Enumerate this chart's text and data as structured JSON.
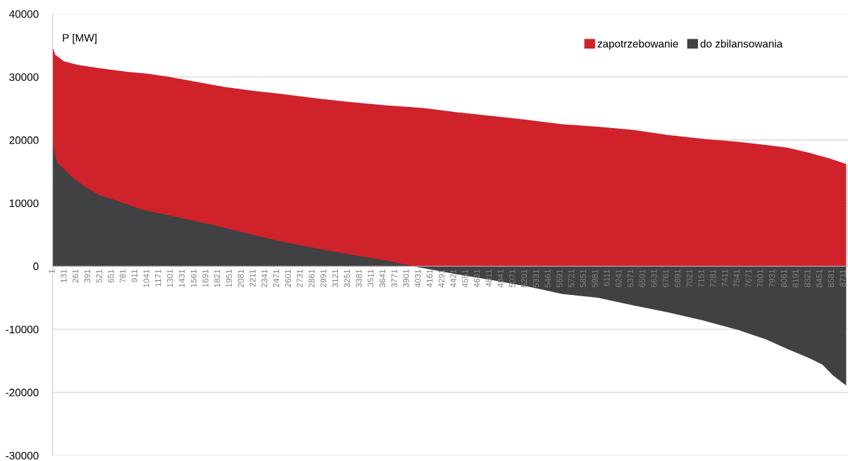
{
  "chart_data": {
    "type": "area",
    "ylabel": "P [MW]",
    "xlim": [
      1,
      8760
    ],
    "ylim": [
      -30000,
      40000
    ],
    "yticks": [
      -30000,
      -20000,
      -10000,
      0,
      10000,
      20000,
      30000,
      40000
    ],
    "xticks": [
      1,
      131,
      261,
      391,
      521,
      651,
      781,
      911,
      1041,
      1171,
      1301,
      1431,
      1561,
      1691,
      1821,
      1951,
      2081,
      2211,
      2341,
      2471,
      2601,
      2731,
      2861,
      2991,
      3121,
      3251,
      3381,
      3511,
      3641,
      3771,
      3901,
      4031,
      4161,
      4291,
      4421,
      4551,
      4681,
      4811,
      4941,
      5071,
      5201,
      5331,
      5461,
      5591,
      5721,
      5851,
      5981,
      6111,
      6241,
      6371,
      6501,
      6631,
      6761,
      6891,
      7021,
      7151,
      7281,
      7411,
      7541,
      7671,
      7801,
      7931,
      8061,
      8191,
      8321,
      8451,
      8581,
      8711
    ],
    "grid": "y",
    "legend": "top right",
    "series": [
      {
        "name": "zapotrzebowanie",
        "color": "#d0222b",
        "x": [
          1,
          32,
          125,
          279,
          511,
          821,
          1053,
          1285,
          1594,
          1904,
          2213,
          2522,
          2909,
          3296,
          3682,
          4069,
          4456,
          4843,
          5229,
          5616,
          6003,
          6390,
          6776,
          7163,
          7549,
          7859,
          8091,
          8323,
          8555,
          8740
        ],
        "values": [
          34700,
          33500,
          32500,
          31900,
          31400,
          30800,
          30500,
          30000,
          29200,
          28400,
          27800,
          27300,
          26600,
          26000,
          25500,
          25100,
          24400,
          23800,
          23200,
          22500,
          22100,
          21600,
          20800,
          20200,
          19700,
          19200,
          18800,
          18000,
          17100,
          16200
        ]
      },
      {
        "name": "do zbilansowania",
        "color": "#414042",
        "x": [
          1,
          16,
          47,
          125,
          202,
          357,
          511,
          743,
          975,
          1362,
          1749,
          2135,
          2522,
          2909,
          3296,
          3682,
          3968,
          4456,
          4843,
          5229,
          5616,
          6003,
          6390,
          6776,
          7163,
          7549,
          7859,
          8091,
          8323,
          8478,
          8593,
          8740
        ],
        "values": [
          21000,
          18400,
          16500,
          15400,
          14300,
          12600,
          11300,
          10200,
          9000,
          7800,
          6600,
          5200,
          3900,
          2800,
          1800,
          900,
          0,
          -1300,
          -2200,
          -3200,
          -4400,
          -5000,
          -6200,
          -7300,
          -8600,
          -10100,
          -11600,
          -13100,
          -14500,
          -15600,
          -17300,
          -18900
        ]
      }
    ]
  }
}
